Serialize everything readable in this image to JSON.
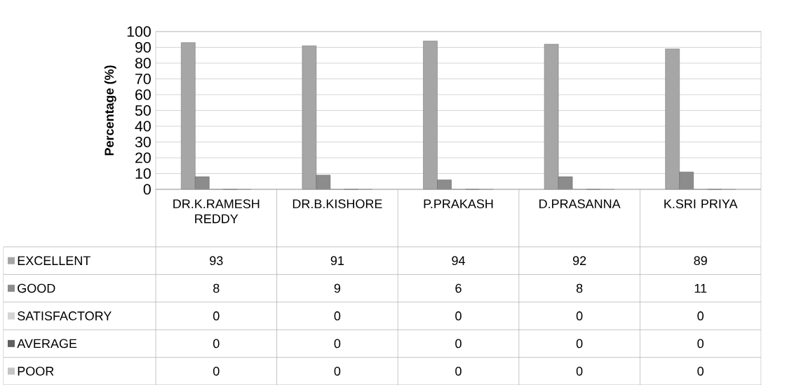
{
  "chart_data": {
    "type": "bar",
    "ylabel": "Percentage (%)",
    "categories": [
      "DR.K.RAMESH REDDY",
      "DR.B.KISHORE",
      "P.PRAKASH",
      "D.PRASANNA",
      "K.SRI PRIYA"
    ],
    "series": [
      {
        "name": "EXCELLENT",
        "color": "#a6a6a6",
        "values": [
          93,
          91,
          94,
          92,
          89
        ]
      },
      {
        "name": "GOOD",
        "color": "#8c8c8c",
        "values": [
          8,
          9,
          6,
          8,
          11
        ]
      },
      {
        "name": "SATISFACTORY",
        "color": "#d4d4d4",
        "values": [
          0,
          0,
          0,
          0,
          0
        ]
      },
      {
        "name": "AVERAGE",
        "color": "#5f5f5f",
        "values": [
          0,
          0,
          0,
          0,
          0
        ]
      },
      {
        "name": "POOR",
        "color": "#c4c4c4",
        "values": [
          0,
          0,
          0,
          0,
          0
        ]
      }
    ],
    "ylim": [
      0,
      100
    ],
    "yticks": [
      0,
      10,
      20,
      30,
      40,
      50,
      60,
      70,
      80,
      90,
      100
    ],
    "grid": "y",
    "legend": "bottom",
    "data_labels": true
  }
}
